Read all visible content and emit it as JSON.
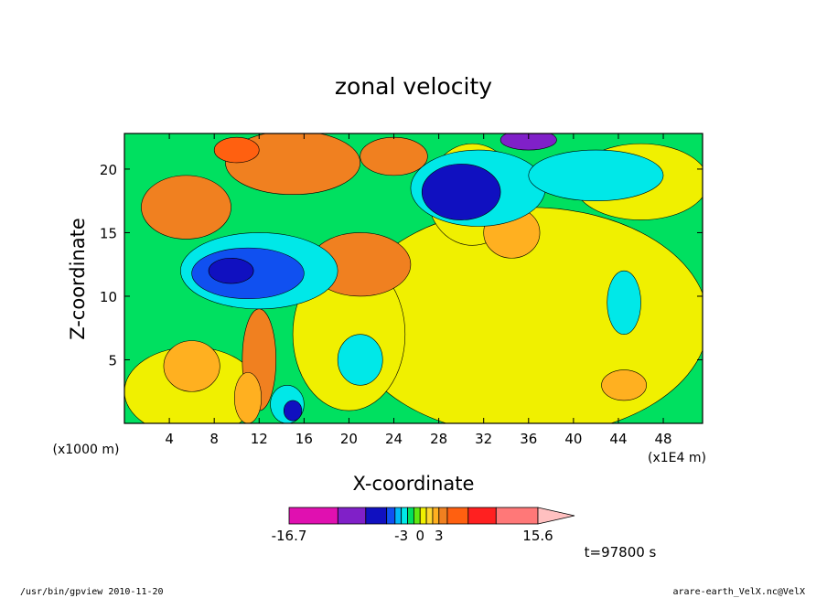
{
  "chart_data": {
    "type": "heatmap",
    "title": "zonal velocity",
    "xlabel": "X-coordinate",
    "ylabel": "Z-coordinate",
    "x_unit": "(x1E4 m)",
    "y_unit": "(x1000 m)",
    "xlim": [
      0,
      51.5
    ],
    "ylim": [
      0,
      22.8
    ],
    "x_ticks": [
      4,
      8,
      12,
      16,
      20,
      24,
      28,
      32,
      36,
      40,
      44,
      48
    ],
    "y_ticks": [
      5,
      10,
      15,
      20
    ],
    "colorbar": {
      "min_label": "-16.7",
      "max_label": "15.6",
      "tick_labels": [
        {
          "label": "-16.7",
          "value": -16.7
        },
        {
          "label": "-3",
          "value": -3
        },
        {
          "label": "0",
          "value": 0
        },
        {
          "label": "3",
          "value": 3
        },
        {
          "label": "15.6",
          "value": 15.6
        }
      ],
      "levels": [
        -16.7,
        -12.4,
        -8.2,
        -5,
        -4,
        -3,
        -2,
        -1,
        0,
        1,
        2,
        3,
        4,
        5.5,
        8.5,
        12.2,
        15.6
      ],
      "colors": [
        "#e010b0",
        "#8020c8",
        "#1010c0",
        "#1050f0",
        "#00b8f8",
        "#00e8e8",
        "#00e060",
        "#60e810",
        "#f0f000",
        "#ffd830",
        "#ffb020",
        "#f08020",
        "#ff6010",
        "#ff2020",
        "#ff7878",
        "#ffc0c0"
      ]
    },
    "time_label": "t=97800 s",
    "footer_left": "/usr/bin/gpview   2010-11-20",
    "footer_right": "arare-earth_VelX.nc@VelX",
    "regions": [
      {
        "level": "green",
        "x": [
          0,
          51.5
        ],
        "y": [
          0,
          22.8
        ],
        "shape": "rect"
      },
      {
        "level": "yellow",
        "cx": 36,
        "cy": 8,
        "rx": 16,
        "ry": 9
      },
      {
        "level": "yellow",
        "cx": 31,
        "cy": 18,
        "rx": 4,
        "ry": 4
      },
      {
        "level": "yellow",
        "cx": 6,
        "cy": 2.5,
        "rx": 6,
        "ry": 3.5
      },
      {
        "level": "yellow",
        "cx": 20,
        "cy": 7,
        "rx": 5,
        "ry": 6
      },
      {
        "level": "yellow",
        "cx": 46,
        "cy": 19,
        "rx": 6,
        "ry": 3
      },
      {
        "level": "light-orange",
        "cx": 34.5,
        "cy": 15,
        "rx": 2.5,
        "ry": 2
      },
      {
        "level": "light-orange",
        "cx": 44.5,
        "cy": 3,
        "rx": 2,
        "ry": 1.2
      },
      {
        "level": "light-orange",
        "cx": 6,
        "cy": 4.5,
        "rx": 2.5,
        "ry": 2
      },
      {
        "level": "orange",
        "cx": 5.5,
        "cy": 17,
        "rx": 4,
        "ry": 2.5
      },
      {
        "level": "orange",
        "cx": 21,
        "cy": 12.5,
        "rx": 4.5,
        "ry": 2.5
      },
      {
        "level": "orange",
        "cx": 15,
        "cy": 20.5,
        "rx": 6,
        "ry": 2.5
      },
      {
        "level": "orange",
        "cx": 24,
        "cy": 21,
        "rx": 3,
        "ry": 1.5
      },
      {
        "level": "dark-orange",
        "cx": 10,
        "cy": 21.5,
        "rx": 2,
        "ry": 1
      },
      {
        "level": "cyan",
        "cx": 12,
        "cy": 12,
        "rx": 7,
        "ry": 3
      },
      {
        "level": "cyan",
        "cx": 31.5,
        "cy": 18.5,
        "rx": 6,
        "ry": 3
      },
      {
        "level": "cyan",
        "cx": 42,
        "cy": 19.5,
        "rx": 6,
        "ry": 2
      },
      {
        "level": "cyan",
        "cx": 44.5,
        "cy": 9.5,
        "rx": 1.5,
        "ry": 2.5
      },
      {
        "level": "cyan",
        "cx": 21,
        "cy": 5,
        "rx": 2,
        "ry": 2
      },
      {
        "level": "blue",
        "cx": 11,
        "cy": 11.8,
        "rx": 5,
        "ry": 2
      },
      {
        "level": "dark-blue",
        "cx": 30,
        "cy": 18.2,
        "rx": 3.5,
        "ry": 2.2
      },
      {
        "level": "dark-blue",
        "cx": 9.5,
        "cy": 12,
        "rx": 2,
        "ry": 1
      },
      {
        "level": "purple",
        "cx": 36,
        "cy": 22.3,
        "rx": 2.5,
        "ry": 0.8
      },
      {
        "level": "cyan",
        "cx": 14.5,
        "cy": 1.5,
        "rx": 1.5,
        "ry": 1.5
      },
      {
        "level": "dark-blue",
        "cx": 15,
        "cy": 1,
        "rx": 0.8,
        "ry": 0.8
      },
      {
        "level": "orange",
        "cx": 12,
        "cy": 5,
        "rx": 1.5,
        "ry": 4
      },
      {
        "level": "light-orange",
        "cx": 11,
        "cy": 2,
        "rx": 1.2,
        "ry": 2
      }
    ]
  }
}
